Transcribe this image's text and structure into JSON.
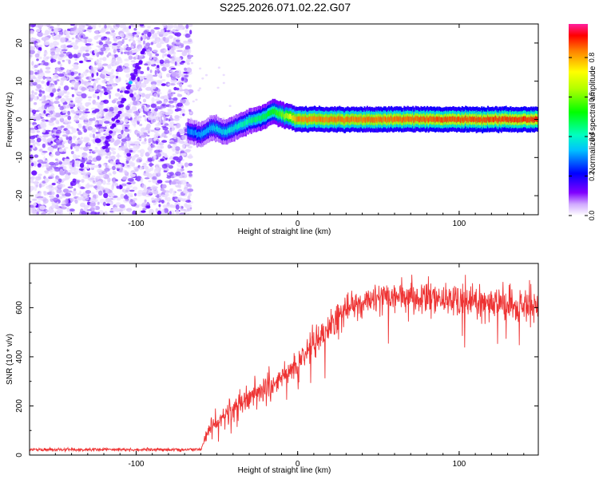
{
  "title": "S225.2026.071.02.22.G07",
  "chart_data": [
    {
      "type": "heatmap",
      "xlabel": "Height of straight line (km)",
      "ylabel": "Frequency (Hz)",
      "xlim": [
        -166,
        149
      ],
      "ylim": [
        -25,
        25
      ],
      "x_ticks": [
        -100,
        0,
        100
      ],
      "y_ticks": [
        -20,
        -10,
        0,
        10,
        20
      ],
      "colorbar": {
        "label": "Normalized spectral amplitude",
        "range": [
          0,
          0.97
        ],
        "ticks": [
          0.0,
          0.2,
          0.4,
          0.6,
          0.8
        ]
      },
      "ridge": {
        "x_start": -68,
        "x_end": 149,
        "frequency_points": [
          [
            -68,
            -3
          ],
          [
            -60,
            -4
          ],
          [
            -52,
            -2
          ],
          [
            -45,
            -3.5
          ],
          [
            -38,
            -2
          ],
          [
            -30,
            -0.5
          ],
          [
            -22,
            0.5
          ],
          [
            -15,
            2
          ],
          [
            -8,
            1
          ],
          [
            0,
            0
          ],
          [
            50,
            0
          ],
          [
            100,
            0
          ],
          [
            149,
            0
          ]
        ],
        "amplitude_points": [
          [
            -68,
            0.3
          ],
          [
            -40,
            0.4
          ],
          [
            -20,
            0.5
          ],
          [
            -10,
            0.6
          ],
          [
            0,
            0.85
          ],
          [
            149,
            0.92
          ]
        ]
      },
      "noise_region": {
        "x_from": -166,
        "x_to": -68,
        "feature": "diagonal streak near -120 to -95 km, -8 to 18 Hz"
      }
    },
    {
      "type": "line",
      "xlabel": "Height of straight line (km)",
      "ylabel": "SNR (10 * v/v)",
      "xlim": [
        -166,
        149
      ],
      "ylim": [
        0,
        780
      ],
      "x_ticks": [
        -100,
        0,
        100
      ],
      "y_ticks": [
        0,
        200,
        400,
        600
      ],
      "series": [
        {
          "name": "SNR",
          "color": "#ee3333",
          "trend": [
            [
              -166,
              22
            ],
            [
              -60,
              22
            ],
            [
              -55,
              100
            ],
            [
              -40,
              190
            ],
            [
              -20,
              270
            ],
            [
              -5,
              330
            ],
            [
              10,
              450
            ],
            [
              25,
              560
            ],
            [
              35,
              620
            ],
            [
              60,
              650
            ],
            [
              90,
              640
            ],
            [
              120,
              620
            ],
            [
              149,
              600
            ]
          ],
          "noise_amplitude": [
            [
              -166,
              8
            ],
            [
              -60,
              8
            ],
            [
              -55,
              45
            ],
            [
              -10,
              70
            ],
            [
              30,
              75
            ],
            [
              149,
              90
            ]
          ]
        }
      ]
    }
  ]
}
